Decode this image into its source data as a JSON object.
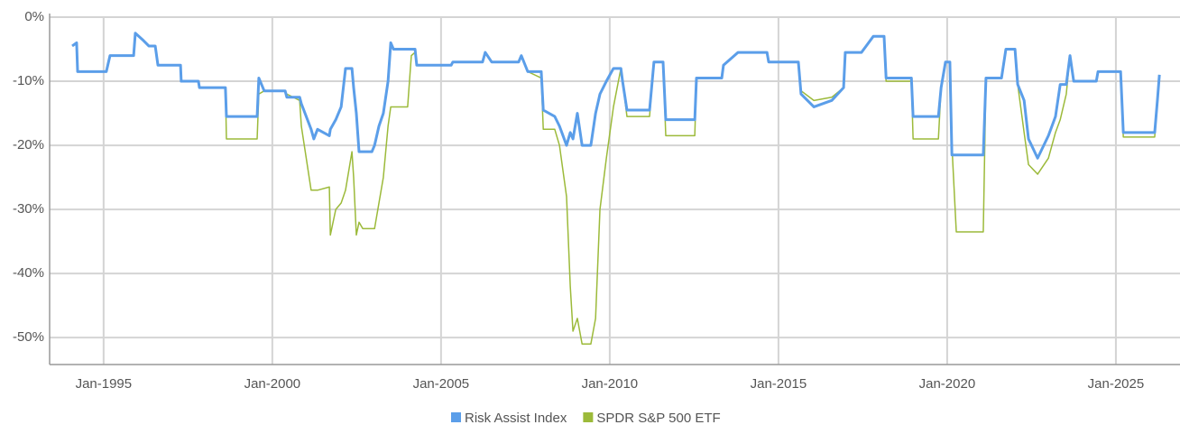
{
  "chart_data": {
    "type": "line",
    "x": [
      1994.07,
      1994.2,
      1994.23,
      1995.08,
      1995.19,
      1995.89,
      1995.94,
      1996.15,
      1996.34,
      1996.53,
      1996.61,
      1997.28,
      1997.3,
      1997.81,
      1997.84,
      1998.61,
      1998.64,
      1999.55,
      1999.6,
      1999.76,
      2000.38,
      2000.43,
      2000.81,
      2000.86,
      2001.15,
      2001.23,
      2001.34,
      2001.69,
      2001.72,
      2001.88,
      2002.04,
      2002.17,
      2002.36,
      2002.41,
      2002.49,
      2002.57,
      2002.68,
      2002.95,
      2003.03,
      2003.16,
      2003.29,
      2003.43,
      2003.51,
      2003.59,
      2003.69,
      2004.01,
      2004.12,
      2004.23,
      2004.28,
      2005.3,
      2005.35,
      2006.23,
      2006.31,
      2006.5,
      2007.3,
      2007.38,
      2007.57,
      2007.97,
      2008.03,
      2008.37,
      2008.51,
      2008.72,
      2008.83,
      2008.91,
      2009.04,
      2009.18,
      2009.44,
      2009.58,
      2009.71,
      2009.9,
      2010.11,
      2010.33,
      2010.38,
      2010.51,
      2011.18,
      2011.31,
      2011.58,
      2011.66,
      2012.52,
      2012.57,
      2013.32,
      2013.37,
      2013.8,
      2014.66,
      2014.71,
      2015.59,
      2015.67,
      2016.05,
      2016.58,
      2016.93,
      2016.98,
      2017.46,
      2017.6,
      2017.81,
      2018.13,
      2018.19,
      2018.94,
      2018.99,
      2019.74,
      2019.82,
      2019.95,
      2020.08,
      2020.14,
      2020.27,
      2021.07,
      2021.15,
      2021.61,
      2021.74,
      2022.01,
      2022.09,
      2022.28,
      2022.41,
      2022.68,
      2023.0,
      2023.21,
      2023.35,
      2023.53,
      2023.64,
      2023.75,
      2024.42,
      2024.47,
      2025.14,
      2025.22,
      2026.15,
      2026.23,
      2026.29
    ],
    "series": [
      {
        "name": "SPDR S&P 500 ETF",
        "color": "#9cba3a",
        "values": [
          -4.5,
          -4,
          -8.5,
          -8.5,
          -6,
          -6,
          -2.5,
          -3.5,
          -4.5,
          -4.5,
          -7.5,
          -7.5,
          -10,
          -10,
          -11,
          -11,
          -19,
          -19,
          -12,
          -11.5,
          -11.5,
          -12,
          -13,
          -17,
          -27,
          -27,
          -27,
          -26.5,
          -34,
          -30,
          -29,
          -27,
          -21,
          -25,
          -34,
          -32,
          -33,
          -33,
          -33,
          -29,
          -25,
          -17,
          -14,
          -14,
          -14,
          -14,
          -6,
          -5.5,
          -7.5,
          -7.5,
          -7,
          -7,
          -5.5,
          -7,
          -7,
          -6,
          -8.5,
          -9.5,
          -17.5,
          -17.5,
          -20,
          -28,
          -42,
          -49,
          -47,
          -51,
          -51,
          -47,
          -30,
          -22,
          -14,
          -8,
          -10,
          -15.5,
          -15.5,
          -7,
          -7,
          -18.5,
          -18.5,
          -9.5,
          -9.5,
          -7.5,
          -5.5,
          -5.5,
          -7,
          -7,
          -11.5,
          -13,
          -12.5,
          -11,
          -5.5,
          -5.5,
          -4.5,
          -3,
          -3,
          -10,
          -10,
          -19,
          -19,
          -11,
          -7,
          -7,
          -20,
          -33.5,
          -33.5,
          -9.5,
          -9.5,
          -5,
          -5,
          -10.5,
          -18,
          -23,
          -24.5,
          -22,
          -18,
          -16,
          -12,
          -6,
          -10,
          -10,
          -8.5,
          -8.5,
          -18.7,
          -18.7,
          -13,
          -9
        ]
      },
      {
        "name": "Risk Assist Index",
        "color": "#5b9ee9",
        "values": [
          -4.5,
          -4,
          -8.5,
          -8.5,
          -6,
          -6,
          -2.5,
          -3.5,
          -4.5,
          -4.5,
          -7.5,
          -7.5,
          -10,
          -10,
          -11,
          -11,
          -15.5,
          -15.5,
          -9.5,
          -11.5,
          -11.5,
          -12.5,
          -12.5,
          -13.5,
          -17.5,
          -19,
          -17.5,
          -18.5,
          -17.5,
          -16,
          -14,
          -8,
          -8,
          -11,
          -15,
          -21,
          -21,
          -21,
          -20,
          -17,
          -15,
          -10,
          -4,
          -5,
          -5,
          -5,
          -5,
          -5,
          -7.5,
          -7.5,
          -7,
          -7,
          -5.5,
          -7,
          -7,
          -6,
          -8.5,
          -8.5,
          -14.5,
          -15.5,
          -17,
          -20,
          -18,
          -19,
          -15,
          -20,
          -20,
          -15,
          -12,
          -10,
          -8,
          -8,
          -10,
          -14.5,
          -14.5,
          -7,
          -7,
          -16,
          -16,
          -9.5,
          -9.5,
          -7.5,
          -5.5,
          -5.5,
          -7,
          -7,
          -12,
          -14,
          -13,
          -11,
          -5.5,
          -5.5,
          -4.5,
          -3,
          -3,
          -9.5,
          -9.5,
          -15.5,
          -15.5,
          -11,
          -7,
          -7,
          -21.5,
          -21.5,
          -21.5,
          -9.5,
          -9.5,
          -5,
          -5,
          -10.5,
          -13,
          -19,
          -22,
          -18.5,
          -15.5,
          -10.5,
          -10.5,
          -6,
          -10,
          -10,
          -8.5,
          -8.5,
          -18,
          -18,
          -13,
          -9
        ]
      }
    ],
    "xlim": [
      1993.4,
      2026.9
    ],
    "xticks": [
      {
        "value": 1995,
        "label": "Jan-1995"
      },
      {
        "value": 2000,
        "label": "Jan-2000"
      },
      {
        "value": 2005,
        "label": "Jan-2005"
      },
      {
        "value": 2010,
        "label": "Jan-2010"
      },
      {
        "value": 2015,
        "label": "Jan-2015"
      },
      {
        "value": 2020,
        "label": "Jan-2020"
      },
      {
        "value": 2025,
        "label": "Jan-2025"
      }
    ],
    "ylim": [
      -54.2,
      0
    ],
    "yticks": [
      {
        "value": 0,
        "label": "0%"
      },
      {
        "value": -10,
        "label": "-10%"
      },
      {
        "value": -20,
        "label": "-20%"
      },
      {
        "value": -30,
        "label": "-30%"
      },
      {
        "value": -40,
        "label": "-40%"
      },
      {
        "value": -50,
        "label": "-50%"
      }
    ],
    "grid": true,
    "legend": "bottom"
  }
}
